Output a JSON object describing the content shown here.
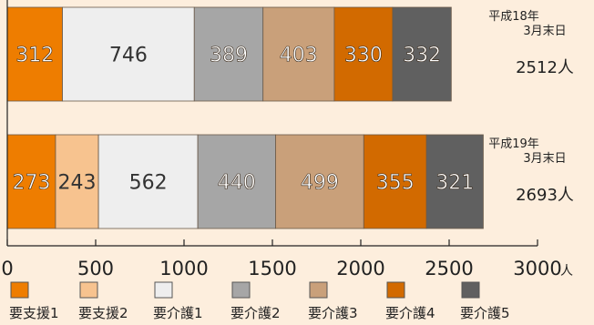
{
  "chart_data": {
    "type": "bar",
    "orientation": "horizontal",
    "stacked": true,
    "xlim": [
      0,
      3000
    ],
    "x_ticks": [
      "0",
      "500",
      "1000",
      "1500",
      "2000",
      "2500",
      "3000"
    ],
    "x_unit": "人",
    "grid": false,
    "legend_position": "bottom",
    "series": [
      {
        "name": "要支援1",
        "color": "#ee7d00",
        "label_color": "#ffffff",
        "values": [
          312,
          273
        ]
      },
      {
        "name": "要支援2",
        "color": "#f7c38f",
        "label_color": "#333333",
        "values": [
          null,
          243
        ]
      },
      {
        "name": "要介護1",
        "color": "#eeeeee",
        "label_color": "#333333",
        "values": [
          746,
          562
        ]
      },
      {
        "name": "要介護2",
        "color": "#a6a6a6",
        "label_color": "#ffffff",
        "values": [
          389,
          440
        ]
      },
      {
        "name": "要介護3",
        "color": "#c9a07a",
        "label_color": "#ffffff",
        "values": [
          403,
          499
        ]
      },
      {
        "name": "要介護4",
        "color": "#d26a00",
        "label_color": "#ffffff",
        "values": [
          330,
          355
        ]
      },
      {
        "name": "要介護5",
        "color": "#606060",
        "label_color": "#ffffff",
        "values": [
          332,
          321
        ]
      }
    ],
    "bars": [
      {
        "label_line1": "平成18年",
        "label_line2": "3月末日",
        "total": "2512人"
      },
      {
        "label_line1": "平成19年",
        "label_line2": "3月末日",
        "total": "2693人"
      }
    ],
    "background": "#fdeedd"
  }
}
